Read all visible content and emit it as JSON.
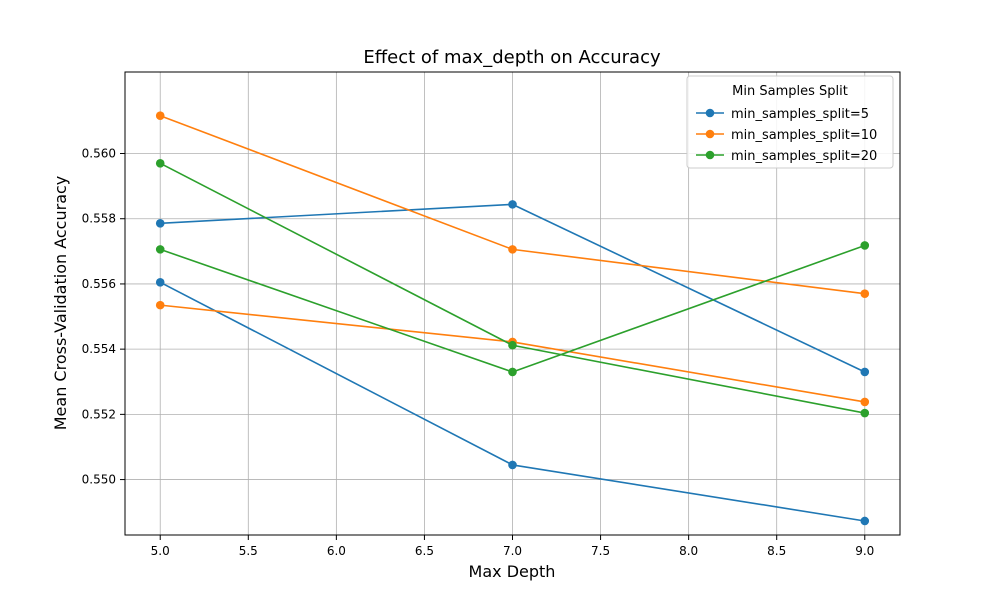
{
  "chart_data": {
    "type": "line",
    "title": "Effect of max_depth on Accuracy",
    "xlabel": "Max Depth",
    "ylabel": "Mean Cross-Validation Accuracy",
    "xlim": [
      4.8,
      9.2
    ],
    "ylim": [
      0.5483,
      0.5625
    ],
    "xticks": [
      "5.0",
      "5.5",
      "6.0",
      "6.5",
      "7.0",
      "7.5",
      "8.0",
      "8.5",
      "9.0"
    ],
    "yticks": [
      "0.550",
      "0.552",
      "0.554",
      "0.556",
      "0.558",
      "0.560"
    ],
    "grid": true,
    "legend": {
      "title": "Min Samples Split",
      "placement": "top-right"
    },
    "x": [
      5,
      7,
      9
    ],
    "series": [
      {
        "name": "min_samples_split=5",
        "color": "#1f77b4",
        "values": [
          0.55786,
          0.55844,
          0.5533
        ]
      },
      {
        "name": "min_samples_split=5",
        "color": "#1f77b4",
        "values": [
          0.55605,
          0.55045,
          0.54873
        ],
        "in_legend": false
      },
      {
        "name": "min_samples_split=10",
        "color": "#ff7f0e",
        "values": [
          0.56116,
          0.55706,
          0.5557
        ]
      },
      {
        "name": "min_samples_split=10",
        "color": "#ff7f0e",
        "values": [
          0.55535,
          0.55422,
          0.55238
        ],
        "in_legend": false
      },
      {
        "name": "min_samples_split=20",
        "color": "#2ca02c",
        "values": [
          0.5597,
          0.55412,
          0.55204
        ]
      },
      {
        "name": "min_samples_split=20",
        "color": "#2ca02c",
        "values": [
          0.55706,
          0.5533,
          0.55718
        ],
        "in_legend": false
      }
    ]
  }
}
